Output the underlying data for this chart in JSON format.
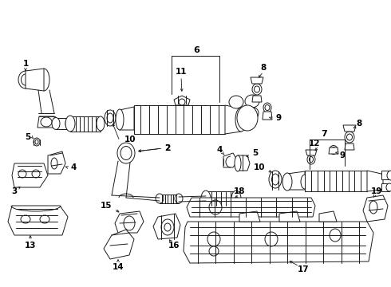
{
  "bg_color": "#ffffff",
  "line_color": "#1a1a1a",
  "text_color": "#000000",
  "fig_width": 4.9,
  "fig_height": 3.6,
  "dpi": 100
}
